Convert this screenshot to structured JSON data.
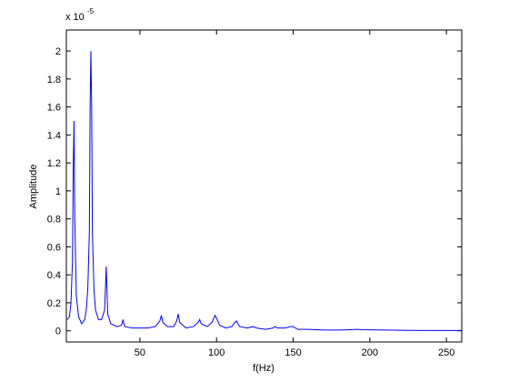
{
  "chart_data": {
    "type": "line",
    "y_label": "Amplitude",
    "x_label": "f(Hz)",
    "y_multiplier": "x 10",
    "y_multiplier_exponent": "-5",
    "x": [
      2.5,
      4,
      5,
      6,
      6.5,
      7,
      7.5,
      8.5,
      10,
      12,
      14,
      15,
      16,
      17,
      17.5,
      18,
      18.5,
      19,
      20,
      21,
      23,
      25,
      27,
      28,
      28.5,
      29,
      31,
      35,
      38,
      39,
      40,
      45,
      55,
      60,
      63,
      64,
      65,
      68,
      72,
      74,
      75,
      76,
      80,
      85,
      88,
      89,
      90,
      94,
      97,
      99,
      100,
      102,
      106,
      110,
      112,
      113,
      115,
      120,
      124,
      126,
      132,
      137,
      138,
      140,
      145,
      148,
      150,
      153,
      160,
      170,
      180,
      192,
      195,
      210,
      225,
      240,
      260
    ],
    "series": [
      {
        "color": "#0000ff",
        "values": [
          0.08,
          0.1,
          0.2,
          0.5,
          1.17,
          1.5,
          0.8,
          0.25,
          0.1,
          0.05,
          0.08,
          0.15,
          0.3,
          0.7,
          1.6,
          2.0,
          1.6,
          0.7,
          0.3,
          0.15,
          0.08,
          0.08,
          0.15,
          0.46,
          0.3,
          0.12,
          0.05,
          0.03,
          0.04,
          0.08,
          0.03,
          0.02,
          0.02,
          0.03,
          0.07,
          0.11,
          0.06,
          0.03,
          0.03,
          0.07,
          0.12,
          0.06,
          0.02,
          0.03,
          0.06,
          0.08,
          0.05,
          0.03,
          0.06,
          0.11,
          0.09,
          0.04,
          0.02,
          0.03,
          0.06,
          0.07,
          0.03,
          0.02,
          0.03,
          0.02,
          0.01,
          0.02,
          0.03,
          0.02,
          0.02,
          0.03,
          0.03,
          0.01,
          0.01,
          0.005,
          0.005,
          0.01,
          0.008,
          0.005,
          0.003,
          0.002,
          0.002
        ]
      }
    ],
    "xlim": [
      2,
      260
    ],
    "ylim": [
      -0.08,
      2.15
    ],
    "xticks": [
      50,
      100,
      150,
      200,
      250
    ],
    "yticks": [
      0,
      0.2,
      0.4,
      0.6,
      0.8,
      1,
      1.2,
      1.4,
      1.6,
      1.8,
      2
    ],
    "grid": false
  }
}
